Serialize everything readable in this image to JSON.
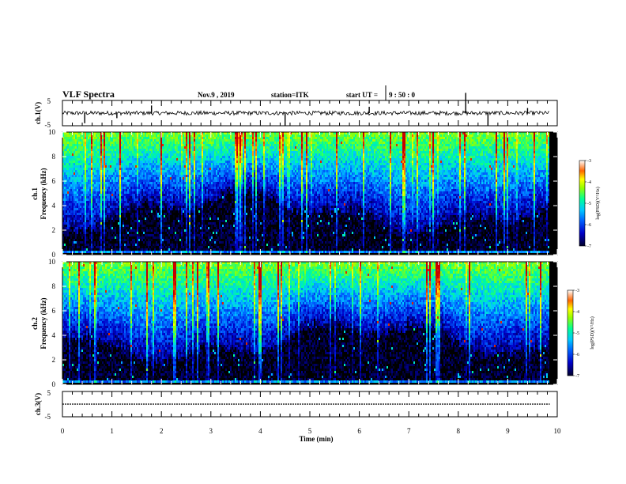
{
  "header": {
    "title": "VLF Spectra",
    "date": "Nov.9  , 2019",
    "station": "station=ITK",
    "start_label": "start  UT  =",
    "start_time": "9  : 50 : 0"
  },
  "chart_data": [
    {
      "id": "ch1-waveform",
      "type": "line",
      "ylabel": "ch.1(V)",
      "ylim": [
        -5,
        5
      ],
      "yticks": [
        5,
        -5
      ],
      "xlim": [
        0,
        10
      ],
      "baseline": 0,
      "spikes": [
        {
          "x": 0.45,
          "y": -4.0
        },
        {
          "x": 1.1,
          "y": -2.0
        },
        {
          "x": 1.8,
          "y": 3.0
        },
        {
          "x": 4.5,
          "y": -5.0
        },
        {
          "x": 6.2,
          "y": 2.5
        },
        {
          "x": 8.15,
          "y": 8.0
        },
        {
          "x": 8.6,
          "y": -5.0
        },
        {
          "x": 9.4,
          "y": 2.0
        }
      ]
    },
    {
      "id": "ch1-spectrogram",
      "type": "heatmap",
      "ylabel": "ch.1\nFrequency  (kHz)",
      "ylim": [
        0,
        10
      ],
      "yticks": [
        "0",
        "2",
        "4",
        "6",
        "8",
        "10"
      ],
      "xlim": [
        0,
        9.85
      ],
      "colorbar": {
        "label": "log(PSD)(V²/Hz)",
        "range": [
          -7,
          -3
        ],
        "ticks": [
          "-3",
          "-4",
          "-5",
          "-6",
          "-7"
        ]
      }
    },
    {
      "id": "ch2-spectrogram",
      "type": "heatmap",
      "ylabel": "ch.2\nFrequency  (kHz)",
      "ylim": [
        0,
        10
      ],
      "yticks": [
        "0",
        "2",
        "4",
        "6",
        "8",
        "10"
      ],
      "xlim": [
        0,
        9.85
      ],
      "colorbar": {
        "label": "log(PSD)(V²/Hz)",
        "range": [
          -7,
          -3
        ],
        "ticks": [
          "-3",
          "-4",
          "-5",
          "-6",
          "-7"
        ]
      }
    },
    {
      "id": "ch3-waveform",
      "type": "line",
      "ylabel": "ch.3(V)",
      "ylim": [
        -5,
        5
      ],
      "yticks": [
        5,
        -5
      ],
      "xlim": [
        0,
        10
      ],
      "baseline": 0
    }
  ],
  "x_axis": {
    "label": "Time  (min)",
    "ticks": [
      "0",
      "1",
      "2",
      "3",
      "4",
      "5",
      "6",
      "7",
      "8",
      "9",
      "10"
    ],
    "range": [
      0,
      10
    ]
  },
  "colors": {
    "background": "#ffffff",
    "colormap": [
      "#000000",
      "#0000c8",
      "#0064ff",
      "#00c8ff",
      "#00ff96",
      "#96ff00",
      "#ffff00",
      "#ff6400",
      "#c80000"
    ]
  }
}
